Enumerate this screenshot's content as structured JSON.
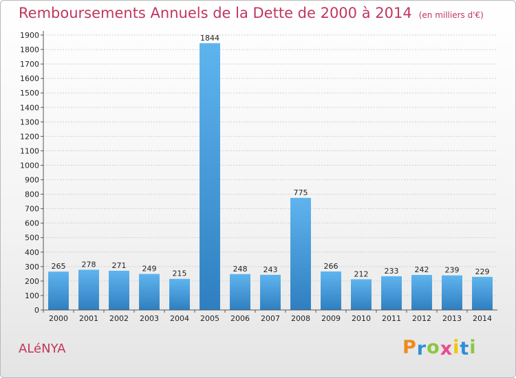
{
  "chart_data": {
    "type": "bar",
    "title": "Remboursements Annuels de la Dette de 2000 à 2014",
    "unit": "(en milliers d'€)",
    "categories": [
      "2000",
      "2001",
      "2002",
      "2003",
      "2004",
      "2005",
      "2006",
      "2007",
      "2008",
      "2009",
      "2010",
      "2011",
      "2012",
      "2013",
      "2014"
    ],
    "values": [
      265,
      278,
      271,
      249,
      215,
      1844,
      248,
      243,
      775,
      266,
      212,
      233,
      242,
      239,
      229
    ],
    "ylim": [
      0,
      1900
    ],
    "yticks": [
      0,
      100,
      200,
      300,
      400,
      500,
      600,
      700,
      800,
      900,
      1000,
      1100,
      1200,
      1300,
      1400,
      1500,
      1600,
      1700,
      1800,
      1900
    ],
    "grid": true,
    "bar_color": "#4aa3e3"
  },
  "commune": "ALéNYA",
  "logo": {
    "letters": [
      "P",
      "r",
      "o",
      "x",
      "i",
      "t",
      "i"
    ],
    "colors": [
      "#f08a1c",
      "#2f8fd6",
      "#8cc63f",
      "#e84c8b",
      "#f2c500",
      "#2f8fd6",
      "#8cc63f"
    ]
  }
}
